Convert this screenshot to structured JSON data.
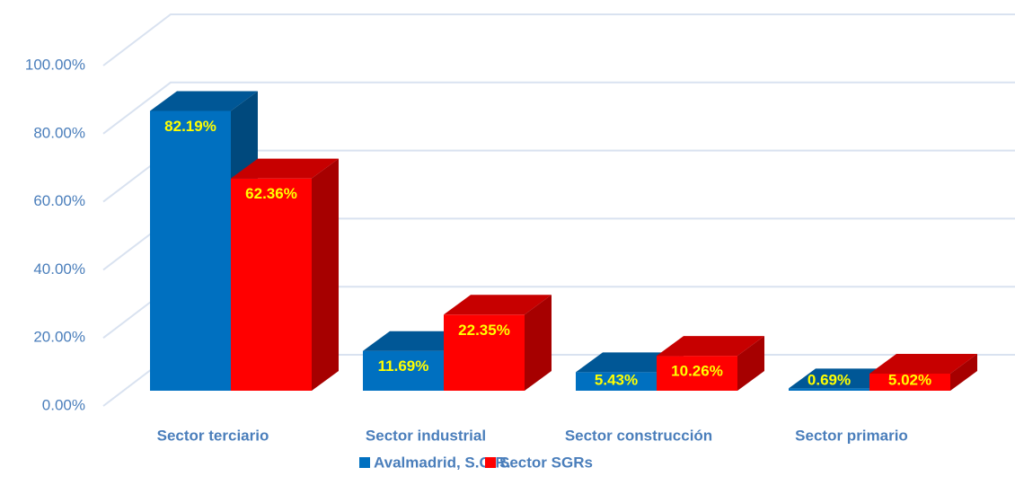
{
  "chart_data": {
    "type": "bar3d",
    "categories": [
      "Sector terciario",
      "Sector industrial",
      "Sector construcción",
      "Sector primario"
    ],
    "series": [
      {
        "name": "Avalmadrid, S.G.R.",
        "color": "#0070c0",
        "values": [
          82.19,
          11.69,
          5.43,
          0.69
        ],
        "value_labels": [
          "82.19%",
          "11.69%",
          "5.43%",
          "0.69%"
        ]
      },
      {
        "name": "Sector SGRs",
        "color": "#ff0000",
        "values": [
          62.36,
          22.35,
          10.26,
          5.02
        ],
        "value_labels": [
          "62.36%",
          "22.35%",
          "10.26%",
          "5.02%"
        ]
      }
    ],
    "ylim": [
      0,
      100
    ],
    "yticks": [
      {
        "value": 0,
        "label": "0.00%"
      },
      {
        "value": 20,
        "label": "20.00%"
      },
      {
        "value": 40,
        "label": "40.00%"
      },
      {
        "value": 60,
        "label": "60.00%"
      },
      {
        "value": 80,
        "label": "80.00%"
      },
      {
        "value": 100,
        "label": "100.00%"
      }
    ],
    "grid": true,
    "legend": "bottom"
  }
}
